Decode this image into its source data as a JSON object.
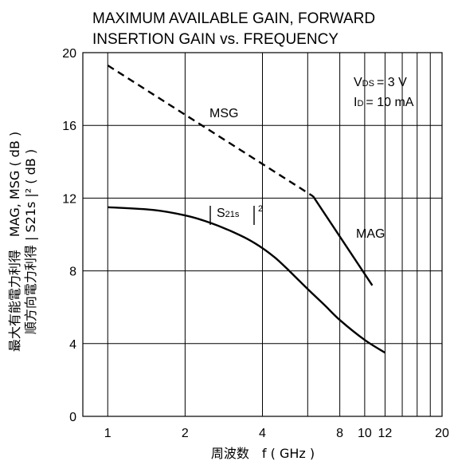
{
  "chart_data": {
    "type": "line",
    "title": [
      "MAXIMUM AVAILABLE GAIN, FORWARD",
      "INSERTION GAIN vs. FREQUENCY"
    ],
    "xlabel": "周波数　f ( GHz )",
    "ylabel": [
      "最大有能電力利得　MAG, MSG ( dB )",
      "順方向電力利得 | S21s |² ( dB )"
    ],
    "x_scale": "log",
    "xlim": [
      0.8,
      20
    ],
    "ylim": [
      0,
      20
    ],
    "x_ticks": [
      1,
      2,
      4,
      8,
      10,
      12,
      20
    ],
    "x_tick_labels": [
      "1",
      "2",
      "4",
      "8",
      "10",
      "12",
      "20"
    ],
    "x_gridlines": [
      1,
      2,
      4,
      6,
      8,
      10,
      12,
      14,
      16,
      18
    ],
    "y_ticks": [
      0,
      4,
      8,
      12,
      16,
      20
    ],
    "y_tick_labels": [
      "0",
      "4",
      "8",
      "12",
      "16",
      "20"
    ],
    "grid": true,
    "conditions": [
      "VDS = 3 V",
      "ID = 10 mA"
    ],
    "series": [
      {
        "name": "MSG",
        "style": "dashed",
        "points": [
          [
            1,
            19.3
          ],
          [
            6.3,
            12.1
          ]
        ]
      },
      {
        "name": "MAG",
        "style": "solid",
        "points": [
          [
            6.3,
            12.1
          ],
          [
            10.7,
            7.2
          ]
        ]
      },
      {
        "name": "| S21s |²",
        "style": "solid",
        "points": [
          [
            1,
            11.5
          ],
          [
            1.5,
            11.35
          ],
          [
            2,
            11.05
          ],
          [
            2.5,
            10.65
          ],
          [
            3,
            10.2
          ],
          [
            3.5,
            9.75
          ],
          [
            4,
            9.25
          ],
          [
            4.5,
            8.7
          ],
          [
            5,
            8.1
          ],
          [
            6,
            7.0
          ],
          [
            7,
            6.1
          ],
          [
            8,
            5.3
          ],
          [
            10,
            4.2
          ],
          [
            12,
            3.5
          ]
        ]
      }
    ]
  }
}
